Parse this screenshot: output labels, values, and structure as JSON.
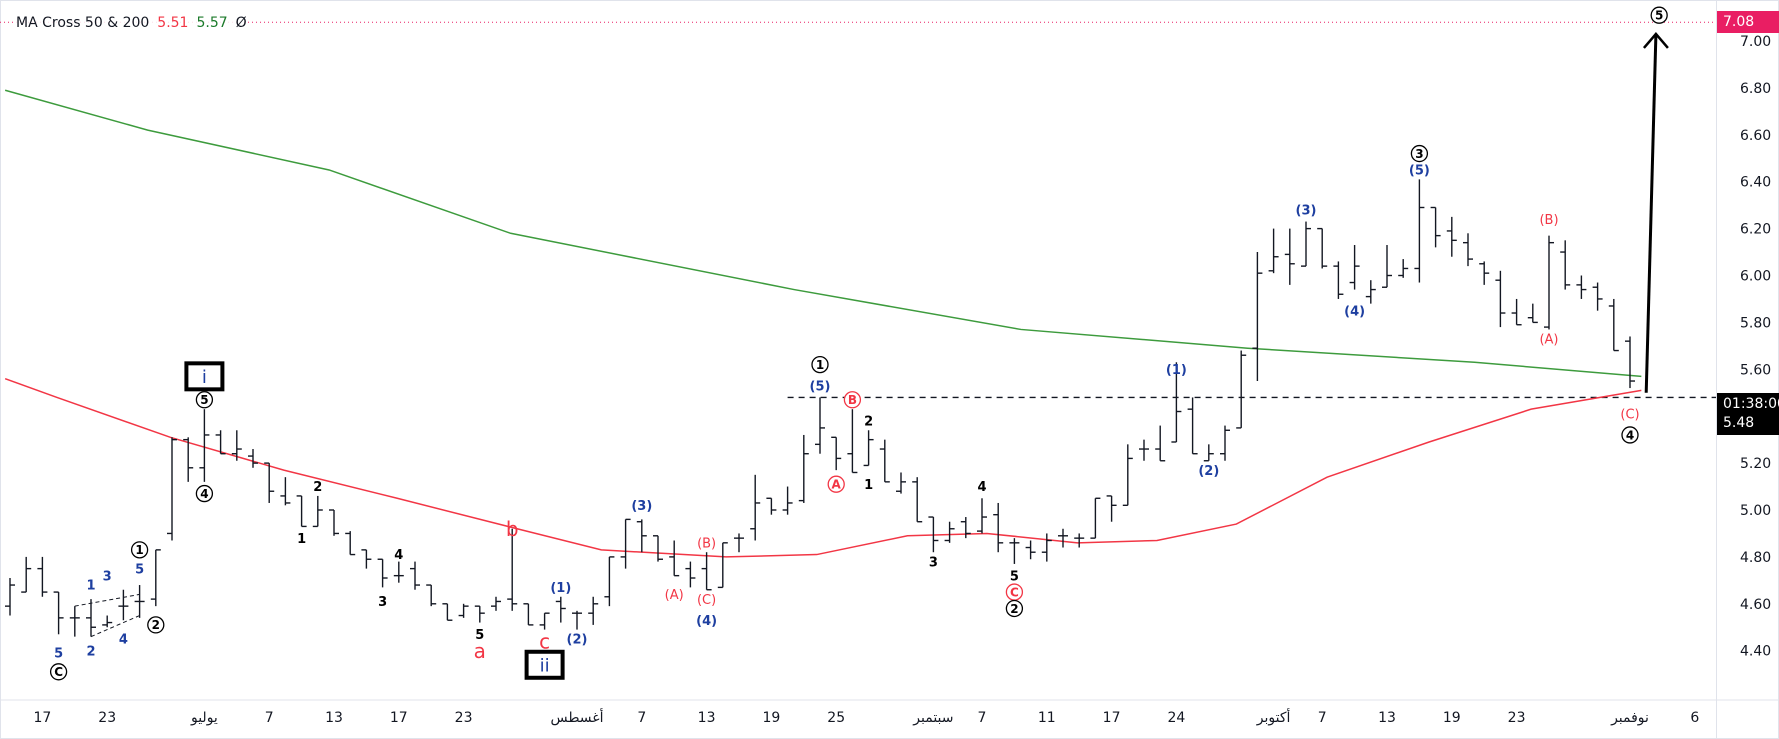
{
  "legend": {
    "name": "MA Cross 50 & 200",
    "ma50_value": "5.51",
    "ma200_value": "5.57",
    "extra": "Ø"
  },
  "colors": {
    "ma50": "#f23645",
    "ma200": "#3d9b3d",
    "bars": "#131722",
    "blue": "#1e3fa0",
    "red": "#f23645",
    "target": "#e91e63"
  },
  "price_labels": {
    "target": "7.08",
    "countdown": "01:38:00",
    "last": "5.48"
  },
  "chart_data": {
    "type": "ohlc",
    "title": "MA Cross 50 & 200",
    "ylim": [
      4.2,
      7.13
    ],
    "yticks": [
      "7.00",
      "6.80",
      "6.60",
      "6.40",
      "6.20",
      "6.00",
      "5.80",
      "5.60",
      "5.40",
      "5.20",
      "5.00",
      "4.80",
      "4.60",
      "4.40"
    ],
    "xticks": [
      {
        "bar": 3,
        "label": "17"
      },
      {
        "bar": 7,
        "label": "23"
      },
      {
        "bar": 13,
        "label": "يوليو"
      },
      {
        "bar": 17,
        "label": "7"
      },
      {
        "bar": 21,
        "label": "13"
      },
      {
        "bar": 25,
        "label": "17"
      },
      {
        "bar": 29,
        "label": "23"
      },
      {
        "bar": 36,
        "label": "أغسطس"
      },
      {
        "bar": 40,
        "label": "7"
      },
      {
        "bar": 44,
        "label": "13"
      },
      {
        "bar": 48,
        "label": "19"
      },
      {
        "bar": 52,
        "label": "25"
      },
      {
        "bar": 58,
        "label": "سبتمبر"
      },
      {
        "bar": 61,
        "label": "7"
      },
      {
        "bar": 65,
        "label": "11"
      },
      {
        "bar": 69,
        "label": "17"
      },
      {
        "bar": 73,
        "label": "24"
      },
      {
        "bar": 79,
        "label": "أكتوبر"
      },
      {
        "bar": 82,
        "label": "7"
      },
      {
        "bar": 86,
        "label": "13"
      },
      {
        "bar": 90,
        "label": "19"
      },
      {
        "bar": 94,
        "label": "23"
      },
      {
        "bar": 101,
        "label": "نوفمبر"
      },
      {
        "bar": 105,
        "label": "6"
      }
    ],
    "ohlc": [
      [
        4.59,
        4.71,
        4.55,
        4.68
      ],
      [
        4.65,
        4.8,
        4.65,
        4.75
      ],
      [
        4.75,
        4.8,
        4.63,
        4.65
      ],
      [
        4.65,
        4.65,
        4.47,
        4.54
      ],
      [
        4.54,
        4.59,
        4.46,
        4.54
      ],
      [
        4.54,
        4.62,
        4.46,
        4.5
      ],
      [
        4.51,
        4.55,
        4.5,
        4.52
      ],
      [
        4.59,
        4.66,
        4.53,
        4.59
      ],
      [
        4.61,
        4.68,
        4.54,
        4.61
      ],
      [
        4.62,
        4.83,
        4.59,
        4.83
      ],
      [
        4.9,
        5.31,
        4.87,
        5.3
      ],
      [
        5.3,
        5.31,
        5.12,
        5.18
      ],
      [
        5.18,
        5.43,
        5.12,
        5.32
      ],
      [
        5.32,
        5.34,
        5.24,
        5.24
      ],
      [
        5.24,
        5.34,
        5.21,
        5.26
      ],
      [
        5.23,
        5.26,
        5.18,
        5.2
      ],
      [
        5.2,
        5.2,
        5.03,
        5.08
      ],
      [
        5.06,
        5.14,
        5.02,
        5.03
      ],
      [
        5.06,
        5.06,
        4.93,
        4.93
      ],
      [
        4.93,
        5.06,
        4.93,
        5.0
      ],
      [
        5.0,
        5.0,
        4.89,
        4.9
      ],
      [
        4.9,
        4.91,
        4.81,
        4.81
      ],
      [
        4.83,
        4.83,
        4.75,
        4.79
      ],
      [
        4.79,
        4.79,
        4.67,
        4.71
      ],
      [
        4.72,
        4.78,
        4.69,
        4.72
      ],
      [
        4.75,
        4.78,
        4.66,
        4.68
      ],
      [
        4.68,
        4.68,
        4.59,
        4.6
      ],
      [
        4.6,
        4.6,
        4.53,
        4.53
      ],
      [
        4.55,
        4.6,
        4.54,
        4.59
      ],
      [
        4.59,
        4.59,
        4.52,
        4.56
      ],
      [
        4.59,
        4.63,
        4.57,
        4.61
      ],
      [
        4.62,
        4.92,
        4.57,
        4.6
      ],
      [
        4.6,
        4.6,
        4.51,
        4.51
      ],
      [
        4.51,
        4.56,
        4.49,
        4.56
      ],
      [
        4.61,
        4.63,
        4.52,
        4.58
      ],
      [
        4.56,
        4.57,
        4.49,
        4.56
      ],
      [
        4.56,
        4.63,
        4.51,
        4.6
      ],
      [
        4.63,
        4.8,
        4.59,
        4.8
      ],
      [
        4.8,
        4.96,
        4.75,
        4.96
      ],
      [
        4.95,
        4.96,
        4.82,
        4.89
      ],
      [
        4.89,
        4.89,
        4.78,
        4.79
      ],
      [
        4.8,
        4.87,
        4.72,
        4.72
      ],
      [
        4.75,
        4.78,
        4.67,
        4.71
      ],
      [
        4.75,
        4.82,
        4.66,
        4.66
      ],
      [
        4.67,
        4.86,
        4.67,
        4.86
      ],
      [
        4.88,
        4.9,
        4.82,
        4.88
      ],
      [
        4.92,
        5.15,
        4.87,
        5.03
      ],
      [
        5.05,
        5.05,
        4.98,
        5.0
      ],
      [
        5.0,
        5.1,
        4.98,
        5.03
      ],
      [
        5.04,
        5.32,
        5.03,
        5.24
      ],
      [
        5.28,
        5.48,
        5.24,
        5.35
      ],
      [
        5.31,
        5.31,
        5.17,
        5.22
      ],
      [
        5.24,
        5.43,
        5.16,
        5.16
      ],
      [
        5.19,
        5.34,
        5.19,
        5.3
      ],
      [
        5.26,
        5.3,
        5.12,
        5.12
      ],
      [
        5.08,
        5.16,
        5.07,
        5.12
      ],
      [
        5.12,
        5.14,
        4.95,
        4.95
      ],
      [
        4.97,
        4.97,
        4.82,
        4.87
      ],
      [
        4.87,
        4.95,
        4.86,
        4.92
      ],
      [
        4.95,
        4.97,
        4.88,
        4.9
      ],
      [
        4.91,
        5.05,
        4.9,
        4.97
      ],
      [
        4.98,
        5.03,
        4.82,
        4.86
      ],
      [
        4.86,
        4.88,
        4.77,
        4.86
      ],
      [
        4.84,
        4.87,
        4.79,
        4.82
      ],
      [
        4.82,
        4.9,
        4.78,
        4.87
      ],
      [
        4.89,
        4.92,
        4.84,
        4.89
      ],
      [
        4.88,
        4.9,
        4.84,
        4.88
      ],
      [
        4.88,
        5.05,
        4.88,
        5.05
      ],
      [
        5.06,
        5.06,
        4.95,
        5.02
      ],
      [
        5.02,
        5.28,
        5.02,
        5.22
      ],
      [
        5.26,
        5.3,
        5.21,
        5.26
      ],
      [
        5.26,
        5.36,
        5.21,
        5.21
      ],
      [
        5.29,
        5.63,
        5.29,
        5.42
      ],
      [
        5.43,
        5.48,
        5.24,
        5.24
      ],
      [
        5.21,
        5.28,
        5.21,
        5.24
      ],
      [
        5.24,
        5.36,
        5.21,
        5.34
      ],
      [
        5.35,
        5.68,
        5.35,
        5.66
      ],
      [
        5.69,
        6.1,
        5.55,
        6.01
      ],
      [
        6.02,
        6.2,
        6.01,
        6.08
      ],
      [
        6.09,
        6.2,
        5.96,
        6.05
      ],
      [
        6.04,
        6.23,
        6.04,
        6.2
      ],
      [
        6.2,
        6.2,
        6.03,
        6.04
      ],
      [
        6.04,
        6.06,
        5.9,
        5.92
      ],
      [
        5.97,
        6.13,
        5.94,
        6.04
      ],
      [
        5.91,
        5.98,
        5.88,
        5.94
      ],
      [
        5.95,
        6.13,
        5.95,
        6.0
      ],
      [
        6.0,
        6.07,
        5.99,
        6.03
      ],
      [
        6.03,
        6.41,
        5.97,
        6.29
      ],
      [
        6.29,
        6.29,
        6.12,
        6.17
      ],
      [
        6.19,
        6.25,
        6.08,
        6.15
      ],
      [
        6.14,
        6.18,
        6.04,
        6.07
      ],
      [
        6.05,
        6.06,
        5.96,
        6.01
      ],
      [
        5.98,
        6.02,
        5.78,
        5.84
      ],
      [
        5.84,
        5.9,
        5.79,
        5.79
      ],
      [
        5.82,
        5.88,
        5.8,
        5.8
      ],
      [
        5.78,
        6.17,
        5.77,
        6.14
      ],
      [
        6.1,
        6.15,
        5.94,
        5.96
      ],
      [
        5.96,
        6.0,
        5.9,
        5.94
      ],
      [
        5.95,
        5.97,
        5.85,
        5.9
      ],
      [
        5.87,
        5.9,
        5.68,
        5.68
      ],
      [
        5.72,
        5.74,
        5.52,
        5.55
      ]
    ],
    "series": [
      {
        "name": "MA 200",
        "color": "#3d9b3d",
        "points": [
          [
            0.7,
            6.79
          ],
          [
            9.5,
            6.62
          ],
          [
            20.7,
            6.45
          ],
          [
            31.9,
            6.18
          ],
          [
            49.4,
            5.94
          ],
          [
            63.4,
            5.77
          ],
          [
            77.4,
            5.69
          ],
          [
            91.4,
            5.63
          ],
          [
            101.7,
            5.57
          ]
        ]
      },
      {
        "name": "MA 50",
        "color": "#f23645",
        "points": [
          [
            0.7,
            5.56
          ],
          [
            3.9,
            5.48
          ],
          [
            10.9,
            5.31
          ],
          [
            17.9,
            5.17
          ],
          [
            24.9,
            5.05
          ],
          [
            32.3,
            4.92
          ],
          [
            37.5,
            4.83
          ],
          [
            45.2,
            4.8
          ],
          [
            50.8,
            4.81
          ],
          [
            56.4,
            4.89
          ],
          [
            61.3,
            4.9
          ],
          [
            66.9,
            4.86
          ],
          [
            71.8,
            4.87
          ],
          [
            76.7,
            4.94
          ],
          [
            82.3,
            5.14
          ],
          [
            88.6,
            5.29
          ],
          [
            94.9,
            5.43
          ],
          [
            101.7,
            5.51
          ]
        ]
      }
    ],
    "hlines": [
      {
        "name": "target-line",
        "price": 7.08,
        "from_bar": 0,
        "style": "dotted",
        "color": "#e91e63"
      },
      {
        "name": "resistance-line",
        "price": 5.48,
        "from_bar": 49,
        "style": "dashed",
        "color": "#131722"
      }
    ],
    "channel": [
      [
        [
          5,
          4.59
        ],
        [
          9,
          4.64
        ]
      ],
      [
        [
          6,
          4.46
        ],
        [
          9,
          4.55
        ]
      ]
    ],
    "projection": {
      "from": [
        102,
        5.5
      ],
      "to": [
        102.6,
        7.03
      ]
    },
    "wave_labels": [
      {
        "t": "i",
        "bar": 13,
        "p": 5.57,
        "c": "blue",
        "s": "box"
      },
      {
        "t": "5",
        "bar": 13,
        "p": 5.47,
        "c": "black",
        "s": "circle"
      },
      {
        "t": "4",
        "bar": 13,
        "p": 5.07,
        "c": "black",
        "s": "circle"
      },
      {
        "t": "1",
        "bar": 9,
        "p": 4.83,
        "c": "black",
        "s": "circle"
      },
      {
        "t": "2",
        "bar": 10,
        "p": 4.51,
        "c": "black",
        "s": "circle"
      },
      {
        "t": "5",
        "bar": 9,
        "p": 4.75,
        "c": "blue",
        "s": "bold"
      },
      {
        "t": "3",
        "bar": 7,
        "p": 4.72,
        "c": "blue",
        "s": "bold"
      },
      {
        "t": "1",
        "bar": 6,
        "p": 4.68,
        "c": "blue",
        "s": "bold"
      },
      {
        "t": "2",
        "bar": 6,
        "p": 4.4,
        "c": "blue",
        "s": "bold"
      },
      {
        "t": "4",
        "bar": 8,
        "p": 4.45,
        "c": "blue",
        "s": "bold"
      },
      {
        "t": "5",
        "bar": 4,
        "p": 4.39,
        "c": "blue",
        "s": "bold"
      },
      {
        "t": "C",
        "bar": 4,
        "p": 4.31,
        "c": "black",
        "s": "circle"
      },
      {
        "t": "2",
        "bar": 20,
        "p": 5.1,
        "c": "black",
        "s": "bold"
      },
      {
        "t": "1",
        "bar": 19,
        "p": 4.88,
        "c": "black",
        "s": "bold"
      },
      {
        "t": "4",
        "bar": 25,
        "p": 4.81,
        "c": "black",
        "s": "bold"
      },
      {
        "t": "3",
        "bar": 24,
        "p": 4.61,
        "c": "black",
        "s": "bold"
      },
      {
        "t": "5",
        "bar": 30,
        "p": 4.47,
        "c": "black",
        "s": "bold"
      },
      {
        "t": "a",
        "bar": 30,
        "p": 4.4,
        "c": "red",
        "s": "big"
      },
      {
        "t": "b",
        "bar": 32,
        "p": 4.92,
        "c": "red",
        "s": "big"
      },
      {
        "t": "c",
        "bar": 34,
        "p": 4.44,
        "c": "red",
        "s": "big"
      },
      {
        "t": "ii",
        "bar": 34,
        "p": 4.34,
        "c": "blue",
        "s": "box"
      },
      {
        "t": "(1)",
        "bar": 35,
        "p": 4.67,
        "c": "blue",
        "s": "bold"
      },
      {
        "t": "(2)",
        "bar": 36,
        "p": 4.45,
        "c": "blue",
        "s": "bold"
      },
      {
        "t": "(3)",
        "bar": 40,
        "p": 5.02,
        "c": "blue",
        "s": "bold"
      },
      {
        "t": "(A)",
        "bar": 42,
        "p": 4.64,
        "c": "red",
        "s": "plain"
      },
      {
        "t": "(B)",
        "bar": 44,
        "p": 4.86,
        "c": "red",
        "s": "plain"
      },
      {
        "t": "(C)",
        "bar": 44,
        "p": 4.62,
        "c": "red",
        "s": "plain"
      },
      {
        "t": "(4)",
        "bar": 44,
        "p": 4.53,
        "c": "blue",
        "s": "bold"
      },
      {
        "t": "1",
        "bar": 51,
        "p": 5.62,
        "c": "black",
        "s": "circle"
      },
      {
        "t": "(5)",
        "bar": 51,
        "p": 5.53,
        "c": "blue",
        "s": "bold"
      },
      {
        "t": "B",
        "bar": 53,
        "p": 5.47,
        "c": "red",
        "s": "circle"
      },
      {
        "t": "A",
        "bar": 52,
        "p": 5.11,
        "c": "red",
        "s": "circle"
      },
      {
        "t": "2",
        "bar": 54,
        "p": 5.38,
        "c": "black",
        "s": "bold"
      },
      {
        "t": "1",
        "bar": 54,
        "p": 5.11,
        "c": "black",
        "s": "bold"
      },
      {
        "t": "3",
        "bar": 58,
        "p": 4.78,
        "c": "black",
        "s": "bold"
      },
      {
        "t": "4",
        "bar": 61,
        "p": 5.1,
        "c": "black",
        "s": "bold"
      },
      {
        "t": "5",
        "bar": 63,
        "p": 4.72,
        "c": "black",
        "s": "bold"
      },
      {
        "t": "C",
        "bar": 63,
        "p": 4.65,
        "c": "red",
        "s": "circle"
      },
      {
        "t": "2",
        "bar": 63,
        "p": 4.58,
        "c": "black",
        "s": "circle"
      },
      {
        "t": "(1)",
        "bar": 73,
        "p": 5.6,
        "c": "blue",
        "s": "bold"
      },
      {
        "t": "(2)",
        "bar": 75,
        "p": 5.17,
        "c": "blue",
        "s": "bold"
      },
      {
        "t": "(3)",
        "bar": 81,
        "p": 6.28,
        "c": "blue",
        "s": "bold"
      },
      {
        "t": "(4)",
        "bar": 84,
        "p": 5.85,
        "c": "blue",
        "s": "bold"
      },
      {
        "t": "3",
        "bar": 88,
        "p": 6.52,
        "c": "black",
        "s": "circle"
      },
      {
        "t": "(5)",
        "bar": 88,
        "p": 6.45,
        "c": "blue",
        "s": "bold"
      },
      {
        "t": "(B)",
        "bar": 96,
        "p": 6.24,
        "c": "red",
        "s": "plain"
      },
      {
        "t": "(A)",
        "bar": 96,
        "p": 5.73,
        "c": "red",
        "s": "plain"
      },
      {
        "t": "(C)",
        "bar": 101,
        "p": 5.41,
        "c": "red",
        "s": "plain"
      },
      {
        "t": "4",
        "bar": 101,
        "p": 5.32,
        "c": "black",
        "s": "circle"
      },
      {
        "t": "5",
        "bar": 102.8,
        "p": 7.11,
        "c": "black",
        "s": "circle"
      }
    ]
  }
}
